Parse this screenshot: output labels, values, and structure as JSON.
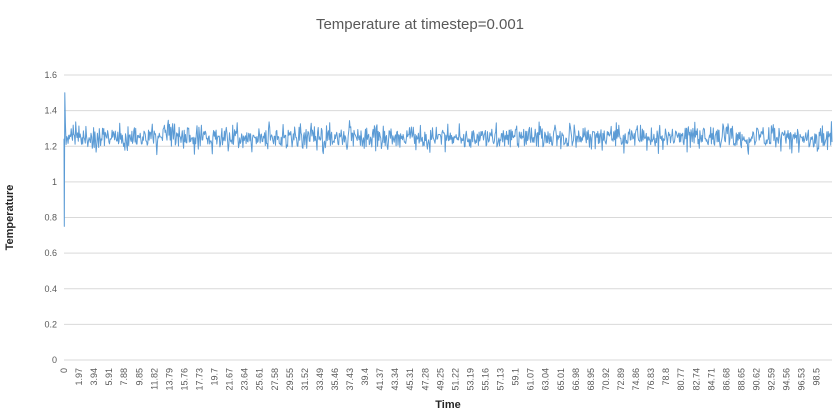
{
  "chart_data": {
    "type": "line",
    "title": "Temperature at timestep=0.001",
    "xlabel": "Time",
    "ylabel": "Temperature",
    "xlim": [
      0,
      100.5
    ],
    "ylim": [
      0,
      1.6
    ],
    "grid": "horizontal",
    "legend": false,
    "y_ticks": [
      0,
      0.2,
      0.4,
      0.6,
      0.8,
      1,
      1.2,
      1.4,
      1.6
    ],
    "y_tick_labels": [
      "0",
      "0.2",
      "0.4",
      "0.6",
      "0.8",
      "1",
      "1.2",
      "1.4",
      "1.6"
    ],
    "x_tick_step": 1.97,
    "x_tick_labels": [
      "0",
      "1.97",
      "3.94",
      "5.91",
      "7.88",
      "9.85",
      "11.82",
      "13.79",
      "15.76",
      "17.73",
      "19.7",
      "21.67",
      "23.64",
      "25.61",
      "27.58",
      "29.55",
      "31.52",
      "33.49",
      "35.46",
      "37.43",
      "39.4",
      "41.37",
      "43.34",
      "45.31",
      "47.28",
      "49.25",
      "51.22",
      "53.19",
      "55.16",
      "57.13",
      "59.1",
      "61.07",
      "63.04",
      "65.01",
      "66.98",
      "68.95",
      "70.92",
      "72.89",
      "74.86",
      "76.83",
      "78.8",
      "80.77",
      "82.74",
      "84.71",
      "86.68",
      "88.65",
      "90.62",
      "92.59",
      "94.56",
      "96.53",
      "98.5"
    ],
    "colors": {
      "line": "#5b9bd5",
      "grid": "#d9d9d9",
      "tick_text": "#595959",
      "axis_title_text": "#262626",
      "title_text": "#595959"
    },
    "series": [
      {
        "name": "Temperature",
        "mean": 1.25,
        "amplitude": 0.07,
        "n_points": 1200,
        "seed": 987654321,
        "initial_points": [
          [
            0,
            1.24
          ],
          [
            0.04,
            0.75
          ],
          [
            0.1,
            1.5
          ],
          [
            0.18,
            1.33
          ],
          [
            0.28,
            1.21
          ]
        ],
        "note": "noisy steady-state signal fluctuating around ~1.25 (band ~1.18-1.32) after an initial transient spike from ~0.75 up to ~1.5 at t=0"
      }
    ]
  }
}
